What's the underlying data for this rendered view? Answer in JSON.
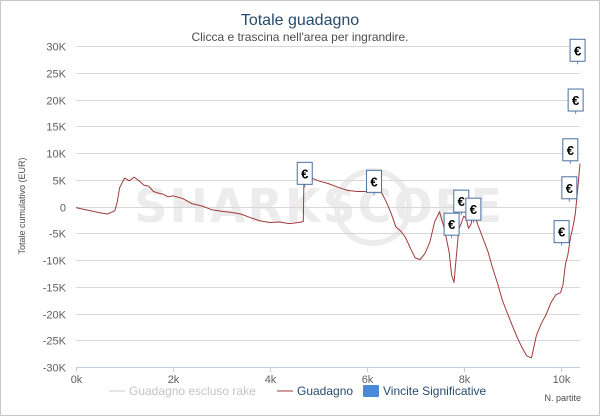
{
  "chart_data": {
    "type": "line",
    "title": "Totale guadagno",
    "subtitle": "Clicca e trascina nell'area per ingrandire.",
    "ylabel": "Totale cumulativo (EUR)",
    "xlabel": "N. partite",
    "xlim": [
      0,
      10400
    ],
    "ylim": [
      -30000,
      30000
    ],
    "x_ticks": [
      0,
      2000,
      4000,
      6000,
      8000,
      10000
    ],
    "x_tick_labels": [
      "0k",
      "2k",
      "4k",
      "6k",
      "8k",
      "10k"
    ],
    "y_ticks": [
      30000,
      25000,
      20000,
      15000,
      10000,
      5000,
      0,
      -5000,
      -10000,
      -15000,
      -20000,
      -25000,
      -30000
    ],
    "y_tick_labels": [
      "30K",
      "25K",
      "20K",
      "15K",
      "10K",
      "5K",
      "0",
      "-5K",
      "-10K",
      "-15K",
      "-20K",
      "-25K",
      "-30K"
    ],
    "grid": "horizontal",
    "legend_position": "bottom",
    "series": [
      {
        "name": "Guadagno escluso rake",
        "color": "#d4d4d4",
        "x": [],
        "y": []
      },
      {
        "name": "Guadagno",
        "color": "#a23a3a",
        "x": [
          0,
          150,
          300,
          500,
          650,
          800,
          850,
          900,
          1000,
          1100,
          1200,
          1300,
          1400,
          1500,
          1600,
          1700,
          1800,
          1900,
          2000,
          2200,
          2400,
          2600,
          2800,
          3000,
          3200,
          3400,
          3600,
          3800,
          4000,
          4200,
          4400,
          4600,
          4690,
          4700,
          4720,
          4800,
          4900,
          5000,
          5200,
          5400,
          5600,
          5800,
          6000,
          6100,
          6150,
          6200,
          6300,
          6400,
          6500,
          6600,
          6700,
          6800,
          6900,
          7000,
          7100,
          7200,
          7300,
          7400,
          7500,
          7600,
          7700,
          7750,
          7800,
          7850,
          7900,
          7950,
          8000,
          8050,
          8100,
          8150,
          8200,
          8300,
          8400,
          8500,
          8600,
          8700,
          8800,
          8900,
          9000,
          9100,
          9200,
          9300,
          9400,
          9500,
          9600,
          9700,
          9800,
          9900,
          10000,
          10050,
          10100,
          10150,
          10200,
          10250,
          10300,
          10350,
          10400
        ],
        "y": [
          -200,
          -500,
          -800,
          -1200,
          -1400,
          -800,
          800,
          3500,
          5300,
          4800,
          5500,
          4800,
          4000,
          3800,
          2800,
          2500,
          2300,
          1800,
          2000,
          1500,
          500,
          100,
          -600,
          -900,
          -1100,
          -1400,
          -2100,
          -2700,
          -3000,
          -2900,
          -3200,
          -3000,
          -2800,
          3500,
          6200,
          5400,
          5200,
          4800,
          4300,
          3600,
          3000,
          2800,
          2800,
          3300,
          4700,
          4000,
          2700,
          900,
          -1200,
          -3800,
          -4600,
          -5800,
          -7800,
          -9600,
          -9900,
          -8800,
          -6700,
          -2900,
          -1000,
          -4100,
          -8600,
          -12800,
          -14200,
          -9200,
          -4200,
          -3100,
          -1800,
          -2200,
          -4100,
          -3300,
          -1000,
          -3600,
          -6000,
          -8400,
          -11600,
          -14400,
          -17600,
          -19900,
          -22200,
          -24400,
          -26300,
          -27900,
          -28300,
          -24100,
          -21900,
          -20200,
          -18000,
          -16500,
          -16100,
          -14600,
          -10700,
          -9000,
          -6000,
          -4000,
          -1500,
          3000,
          8000
        ]
      }
    ],
    "markers_label": "€",
    "markers": [
      {
        "x": 4720,
        "y": 6200
      },
      {
        "x": 6150,
        "y": 4700
      },
      {
        "x": 7750,
        "y": -3300
      },
      {
        "x": 7950,
        "y": 1000
      },
      {
        "x": 8200,
        "y": -500
      },
      {
        "x": 10020,
        "y": -4700
      },
      {
        "x": 10180,
        "y": 3500
      },
      {
        "x": 10200,
        "y": 10600
      },
      {
        "x": 10310,
        "y": 19900
      },
      {
        "x": 10350,
        "y": 29200
      }
    ],
    "legend": [
      {
        "label": "Guadagno escluso rake",
        "color": "#cccccc",
        "kind": "line"
      },
      {
        "label": "Guadagno",
        "color": "#a23a3a",
        "kind": "line"
      },
      {
        "label": "Vincite Significative",
        "color": "#4a8ad8",
        "kind": "box"
      }
    ]
  },
  "watermark": "SHARKSCOPE"
}
